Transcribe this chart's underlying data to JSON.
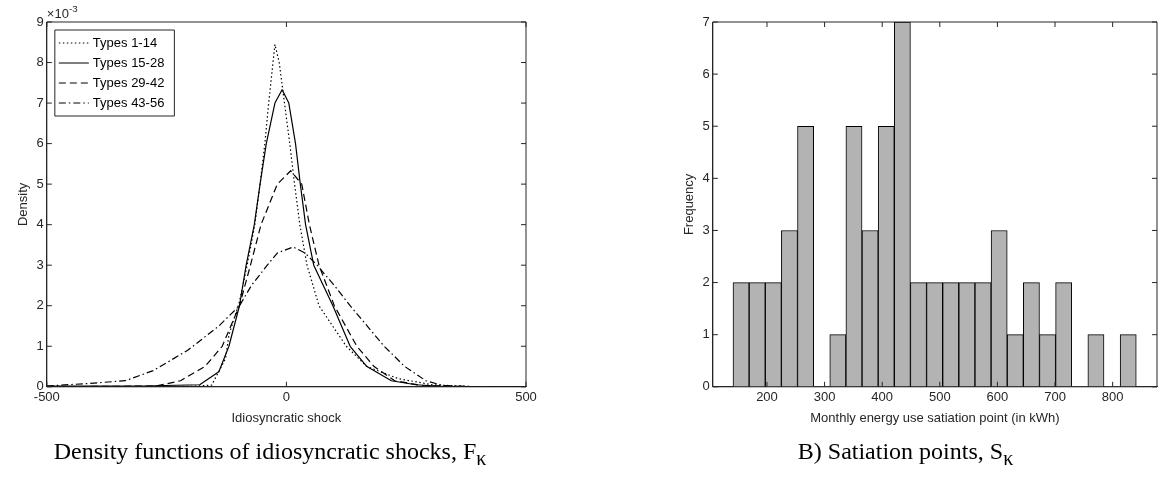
{
  "chart_data": [
    {
      "type": "line",
      "title": "Density functions of idiosyncratic shocks, F$_{κ}$",
      "xlabel": "Idiosyncratic shock",
      "ylabel": "Density",
      "annotations": [
        "×10$^{-3}$"
      ],
      "legend": "top left",
      "grid": false,
      "marker": "none",
      "xlim": [
        -500,
        500
      ],
      "xticks": [
        -500,
        0,
        500
      ],
      "ylim": [
        0,
        9
      ],
      "yticks": [
        0,
        1,
        2,
        3,
        4,
        5,
        6,
        7,
        8,
        9
      ],
      "series": [
        {
          "name": "Types 1-14",
          "color": "#000000",
          "line_style": "dotted",
          "x": [
            -500,
            -300,
            -200,
            -156,
            -127,
            -120,
            -98,
            -82,
            -66,
            -55,
            -45,
            -37,
            -28,
            -24,
            -15,
            -4,
            7,
            17,
            28,
            43,
            68,
            125,
            168,
            234,
            305,
            400,
            500
          ],
          "values": [
            0,
            0,
            0.01,
            0.04,
            0.7,
            1.28,
            2.1,
            3,
            4,
            5,
            6,
            7,
            8,
            8.45,
            8,
            7,
            6,
            5,
            4,
            3,
            2,
            1,
            0.5,
            0.2,
            0.05,
            0,
            0
          ]
        },
        {
          "name": "Types 15-28",
          "color": "#000000",
          "line_style": "solid",
          "x": [
            -500,
            -300,
            -181,
            -141,
            -120,
            -98,
            -84,
            -67,
            -55,
            -42,
            -24,
            -9,
            5,
            19,
            29,
            40,
            57,
            97,
            133,
            168,
            219,
            270,
            342,
            500
          ],
          "values": [
            0.02,
            0.02,
            0.05,
            0.37,
            1,
            2,
            3,
            4,
            5,
            6,
            7,
            7.33,
            7,
            6,
            5,
            4,
            3,
            2,
            1,
            0.5,
            0.15,
            0.05,
            0,
            0
          ]
        },
        {
          "name": "Types 29-42",
          "color": "#000000",
          "line_style": "dashed",
          "x": [
            -500,
            -271,
            -221,
            -170,
            -134,
            -98,
            -75,
            -53,
            -19,
            9,
            32,
            48,
            68,
            100,
            147,
            183,
            226,
            284,
            400,
            500
          ],
          "values": [
            0,
            0.02,
            0.15,
            0.5,
            1,
            2,
            3,
            4,
            5,
            5.33,
            5,
            4,
            3,
            2,
            1,
            0.5,
            0.15,
            0.03,
            0,
            0
          ]
        },
        {
          "name": "Types 43-56",
          "color": "#000000",
          "line_style": "dashdot",
          "x": [
            -500,
            -415,
            -336,
            -278,
            -206,
            -141,
            -98,
            -73,
            -40,
            -19,
            14,
            39,
            64,
            100,
            133,
            204,
            247,
            291,
            327,
            400,
            500
          ],
          "values": [
            0.02,
            0.08,
            0.15,
            0.4,
            0.9,
            1.5,
            2,
            2.5,
            3,
            3.3,
            3.45,
            3.3,
            3,
            2.5,
            2,
            1,
            0.5,
            0.15,
            0.03,
            0,
            0
          ]
        }
      ]
    },
    {
      "type": "histogram",
      "title": "B) Satiation points, S$_{κ}$",
      "xlabel": "Monthly energy use satiation point (in kWh)",
      "ylabel": "Frequency",
      "color": "#b3b3b3",
      "grid": false,
      "xlim": [
        106,
        877
      ],
      "xticks": [
        200,
        300,
        400,
        500,
        600,
        700,
        800
      ],
      "ylim": [
        0,
        7
      ],
      "yticks": [
        0,
        1,
        2,
        3,
        4,
        5,
        6,
        7
      ],
      "bins": [
        141,
        169,
        197,
        225,
        253,
        281,
        309,
        337,
        365,
        393,
        421,
        449,
        477,
        505,
        533,
        561,
        589,
        617,
        645,
        673,
        701,
        729,
        757,
        785,
        813,
        841
      ],
      "values": [
        2,
        2,
        2,
        3,
        5,
        0,
        1,
        5,
        3,
        5,
        7,
        2,
        2,
        2,
        2,
        2,
        3,
        1,
        2,
        1,
        2,
        0,
        1,
        0,
        1
      ]
    }
  ]
}
